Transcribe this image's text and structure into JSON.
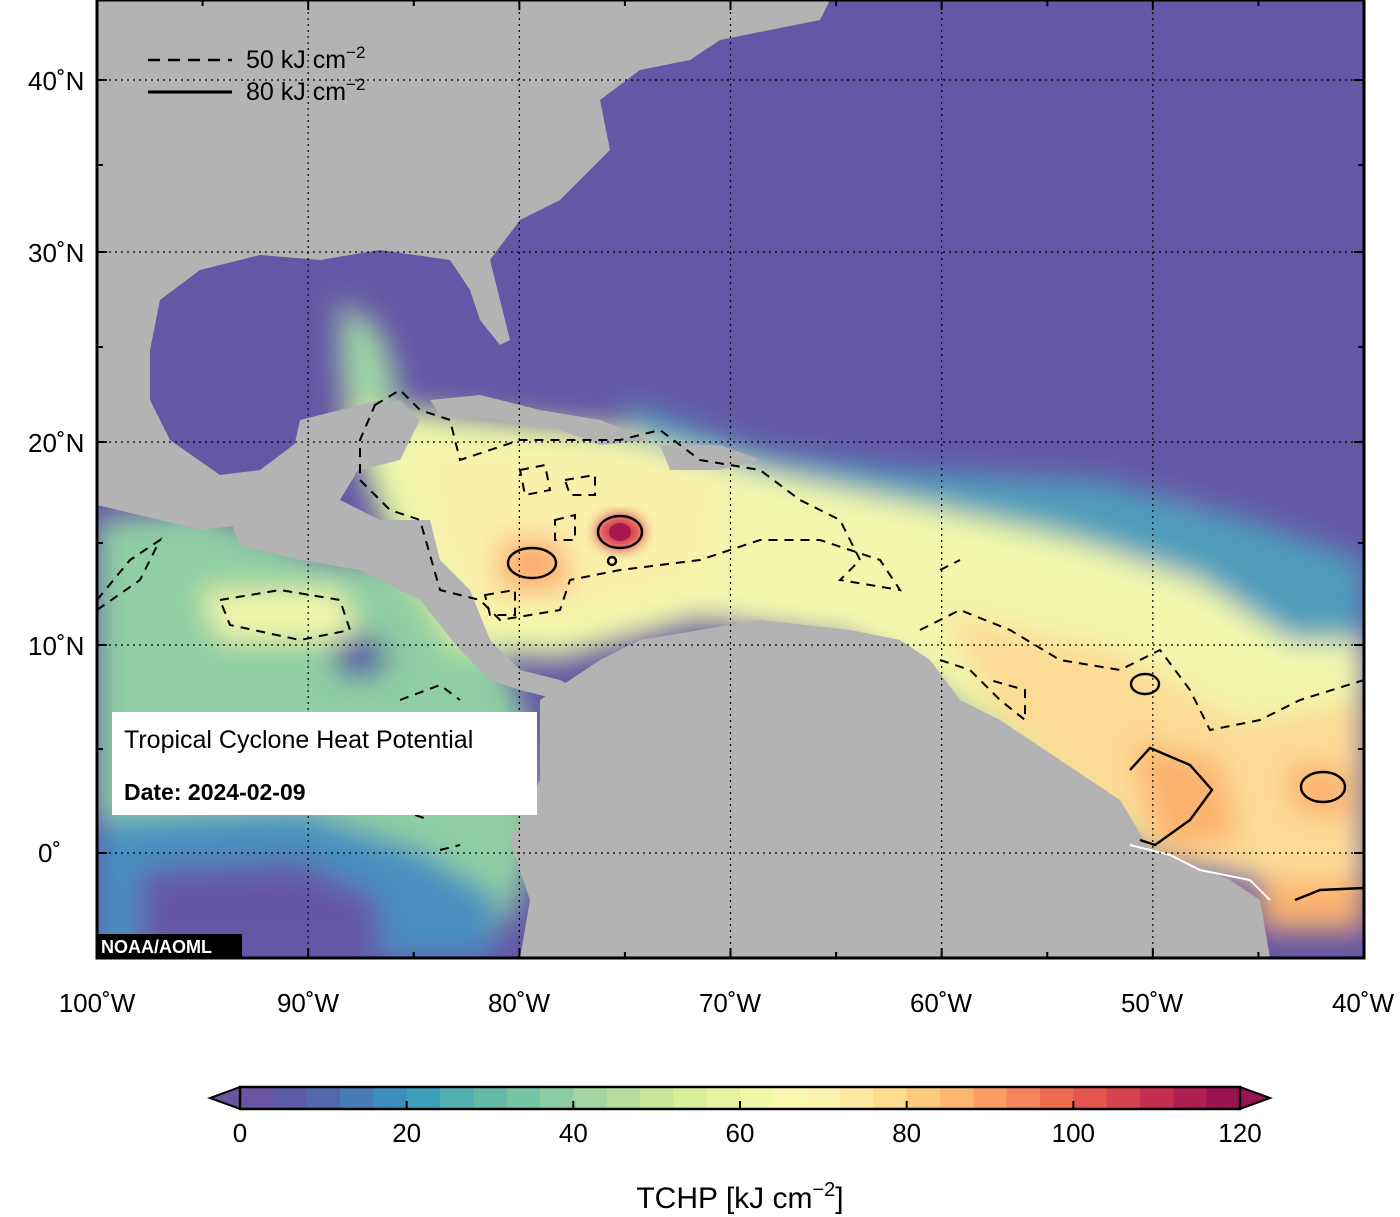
{
  "map": {
    "title": "Tropical Cyclone Heat Potential",
    "date_label": "Date: 2024-02-09",
    "credit": "NOAA/AOML",
    "lon_ticks": [
      "100˚W",
      "90˚W",
      "80˚W",
      "70˚W",
      "60˚W",
      "50˚W",
      "40˚W"
    ],
    "lat_ticks": [
      "40˚N",
      "30˚N",
      "20˚N",
      "10˚N",
      "0˚"
    ],
    "lon_values": [
      -100,
      -90,
      -80,
      -70,
      -60,
      -50,
      -40
    ],
    "lat_values": [
      40,
      30,
      20,
      10,
      0
    ],
    "extent": {
      "lon": [
        -100,
        -40
      ],
      "lat": [
        -5,
        45
      ]
    },
    "contour_legend": [
      {
        "style": "dashed",
        "label_main": "50 kJ cm",
        "label_sup": "−2",
        "value": 50
      },
      {
        "style": "solid",
        "label_main": "80 kJ cm",
        "label_sup": "−2",
        "value": 80
      }
    ],
    "colors": {
      "land": "#b3b3b3",
      "low_ocean": "#6557a5",
      "grid": "#000000"
    }
  },
  "colorbar": {
    "label_main": "TCHP [kJ cm",
    "label_sup": "−2",
    "label_end": "]",
    "range": [
      0,
      120
    ],
    "ticks": [
      "0",
      "20",
      "40",
      "60",
      "80",
      "100",
      "120"
    ],
    "tick_values": [
      0,
      20,
      40,
      60,
      80,
      100,
      120
    ],
    "colors": [
      "#6a55a3",
      "#5d5ba8",
      "#5168ad",
      "#467bb4",
      "#3d8fbb",
      "#3e9fbb",
      "#52b0b0",
      "#63baa7",
      "#77c4a4",
      "#8ccda3",
      "#a2d6a2",
      "#b6de9d",
      "#c8e69a",
      "#d8ee9b",
      "#e6f4a0",
      "#f1f8a8",
      "#f8f8b0",
      "#fcf3b0",
      "#fde9a0",
      "#fddc90",
      "#fcca7e",
      "#fcb670",
      "#f99d63",
      "#f5845a",
      "#ee6b52",
      "#e4564e",
      "#d5444e",
      "#c3304f",
      "#ae1f50",
      "#991450"
    ]
  }
}
